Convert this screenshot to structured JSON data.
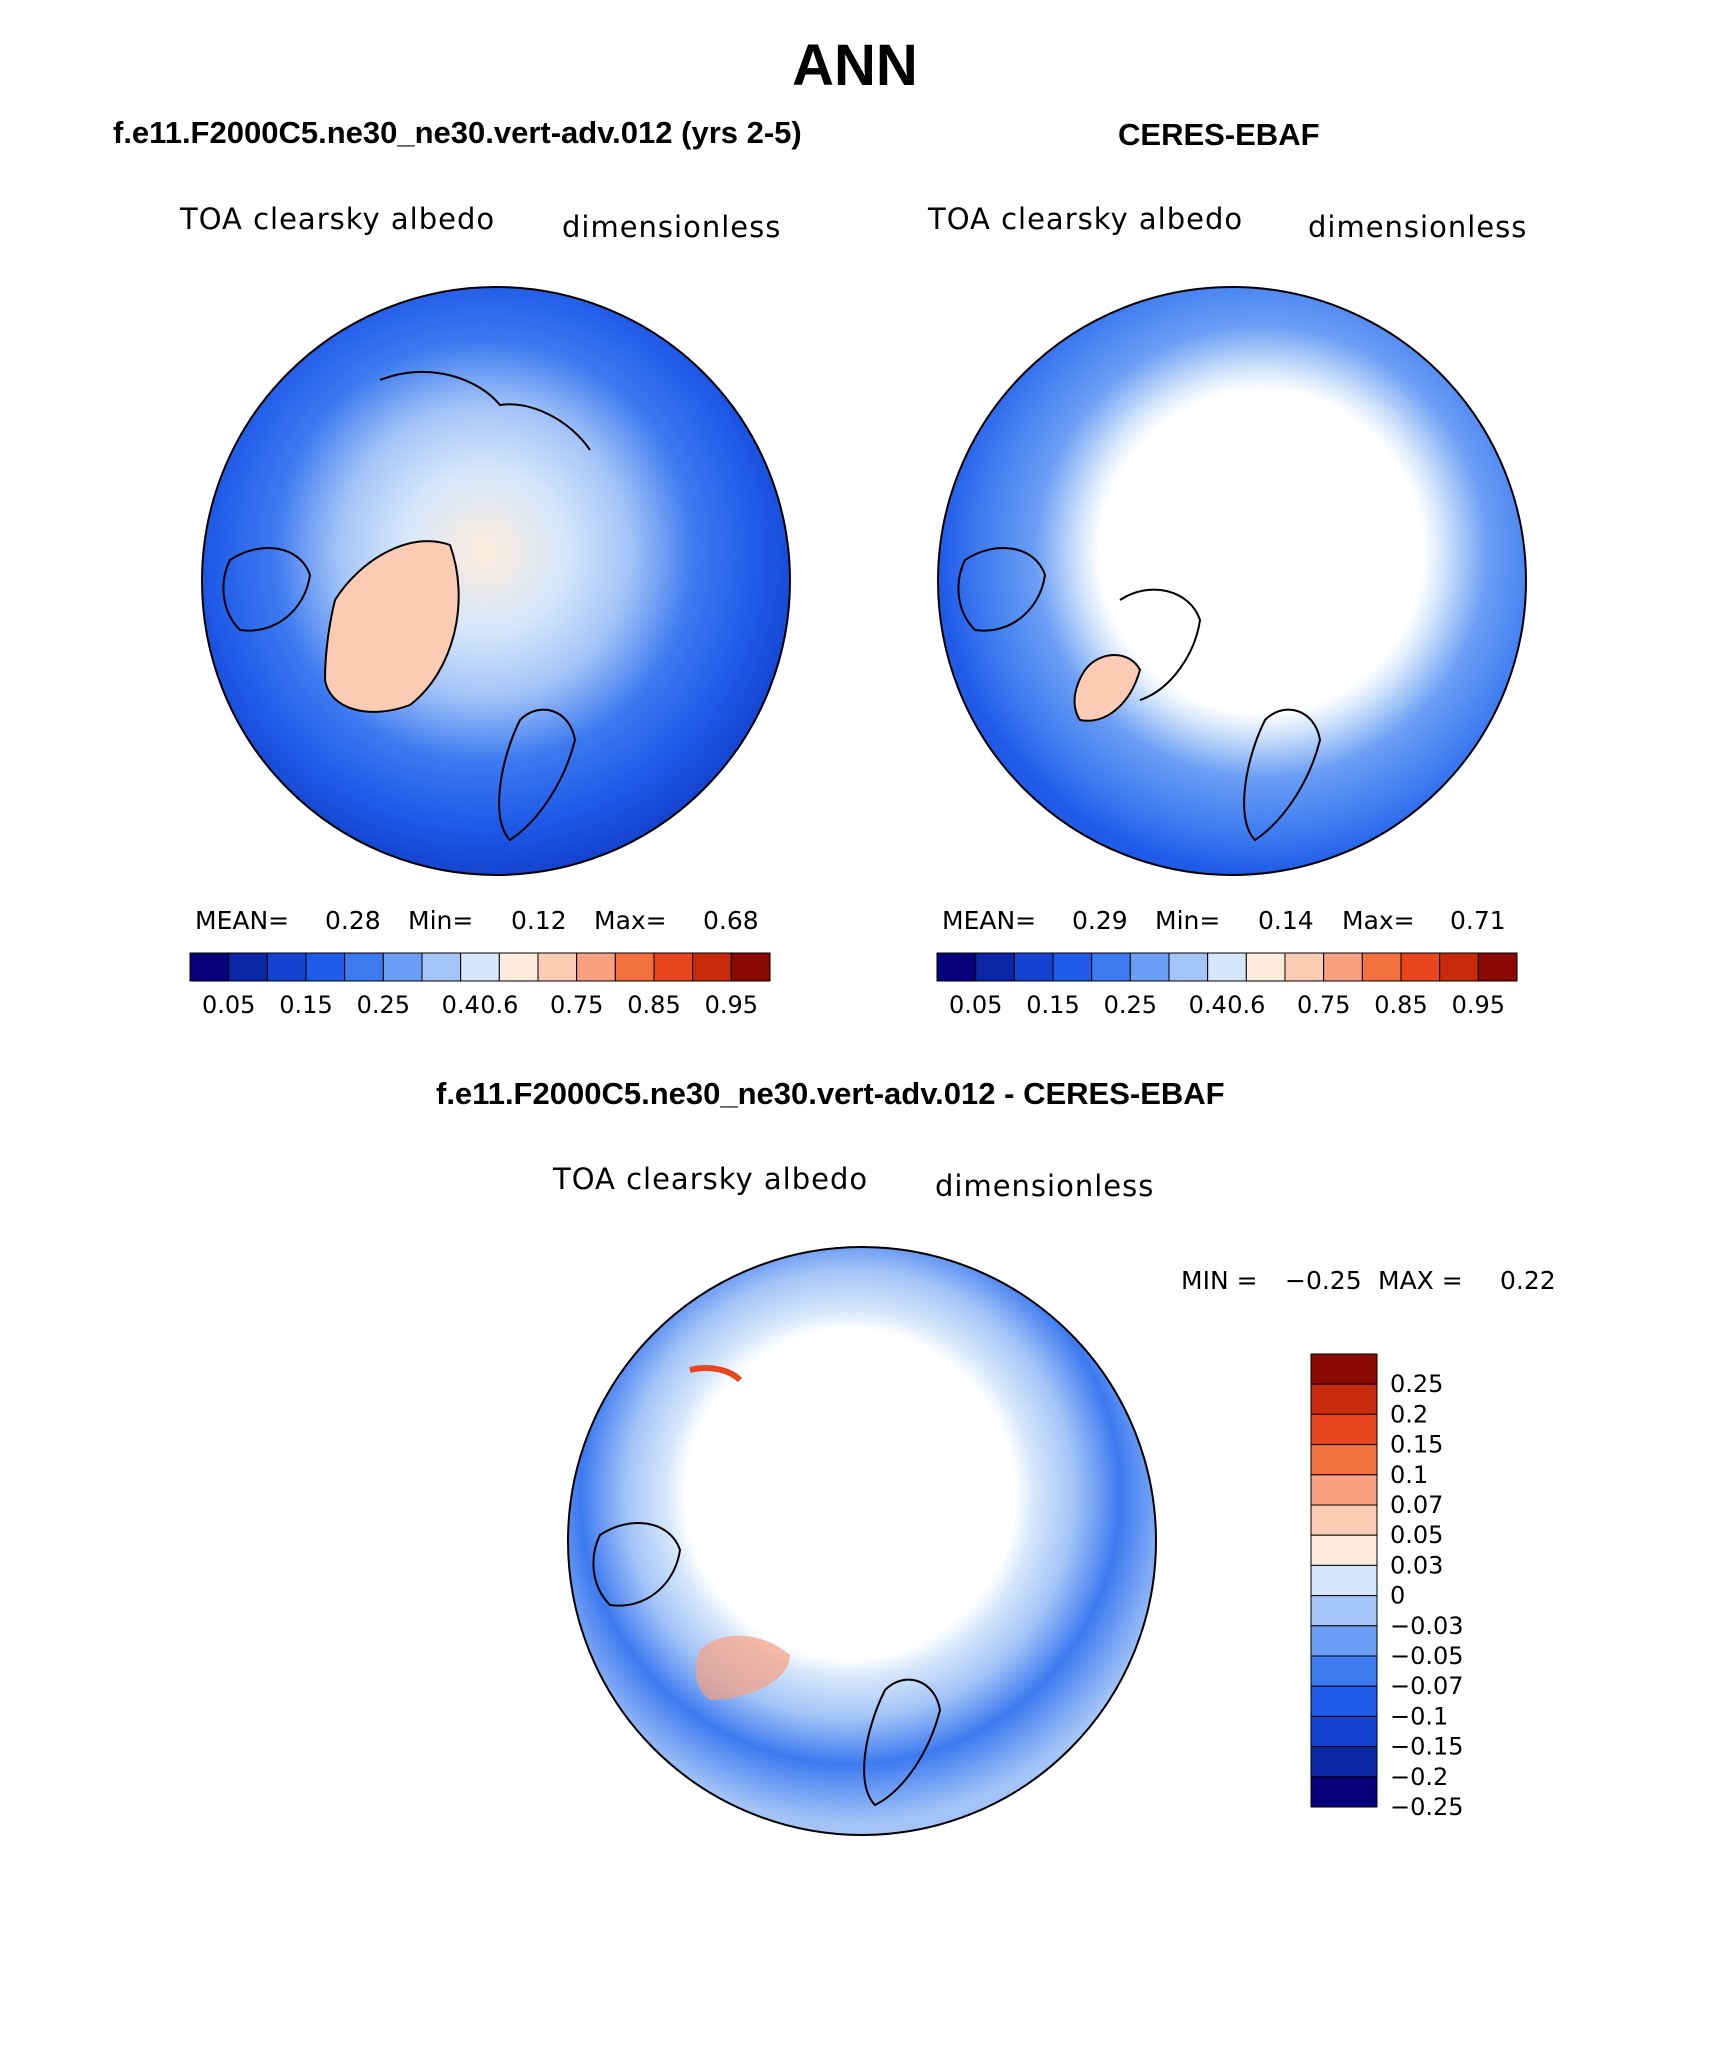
{
  "title": "ANN",
  "palette": {
    "base": [
      "#08007a",
      "#0b27a8",
      "#1443cf",
      "#1f5ae8",
      "#3d7af0",
      "#6b9ef4",
      "#a4c4f7",
      "#d6e7fb",
      "#fdebdc",
      "#fbcbb4",
      "#f8a080",
      "#f3713f",
      "#e9461f",
      "#c92a0b",
      "#8c0a05"
    ],
    "diff": [
      "#08007a",
      "#0b27a8",
      "#1443cf",
      "#1f5ae8",
      "#3d7af0",
      "#6b9ef4",
      "#a4c4f7",
      "#d6e7fb",
      "#fdebdc",
      "#fbcbb4",
      "#f8a080",
      "#f3713f",
      "#e9461f",
      "#c92a0b",
      "#8c0a05"
    ],
    "map_ocean": "#1f5ae8",
    "map_line": "#000000"
  },
  "panels": [
    {
      "title": "f.e11.F2000C5.ne30_ne30.vert-adv.012 (yrs 2-5)",
      "variable": "TOA clearsky albedo",
      "units": "dimensionless",
      "stats": {
        "mean_label": "MEAN=",
        "mean": "0.28",
        "min_label": "Min=",
        "min": "0.12",
        "max_label": "Max=",
        "max": "0.68"
      }
    },
    {
      "title": "CERES-EBAF",
      "variable": "TOA clearsky albedo",
      "units": "dimensionless",
      "stats": {
        "mean_label": "MEAN=",
        "mean": "0.29",
        "min_label": "Min=",
        "min": "0.14",
        "max_label": "Max=",
        "max": "0.71"
      }
    },
    {
      "title": "f.e11.F2000C5.ne30_ne30.vert-adv.012 - CERES-EBAF",
      "variable": "TOA clearsky albedo",
      "units": "dimensionless",
      "stats": {
        "min_label": "MIN =",
        "min": "−0.25",
        "max_label": "MAX =",
        "max": "0.22"
      }
    }
  ],
  "chart_data": [
    {
      "type": "heatmap",
      "projection": "north polar stereographic",
      "colorbar_levels": [
        "0.05",
        "0.15",
        "0.25",
        "0.4",
        "0.6",
        "0.75",
        "0.85",
        "0.95"
      ],
      "colorbar_orientation": "horizontal"
    },
    {
      "type": "heatmap",
      "projection": "north polar stereographic",
      "colorbar_levels": [
        "0.05",
        "0.15",
        "0.25",
        "0.4",
        "0.6",
        "0.75",
        "0.85",
        "0.95"
      ],
      "colorbar_orientation": "horizontal"
    },
    {
      "type": "heatmap",
      "projection": "north polar stereographic",
      "colorbar_levels": [
        "0.25",
        "0.2",
        "0.15",
        "0.1",
        "0.07",
        "0.05",
        "0.03",
        "0",
        "−0.03",
        "−0.05",
        "−0.07",
        "−0.1",
        "−0.15",
        "−0.2",
        "−0.25"
      ],
      "colorbar_orientation": "vertical"
    }
  ]
}
